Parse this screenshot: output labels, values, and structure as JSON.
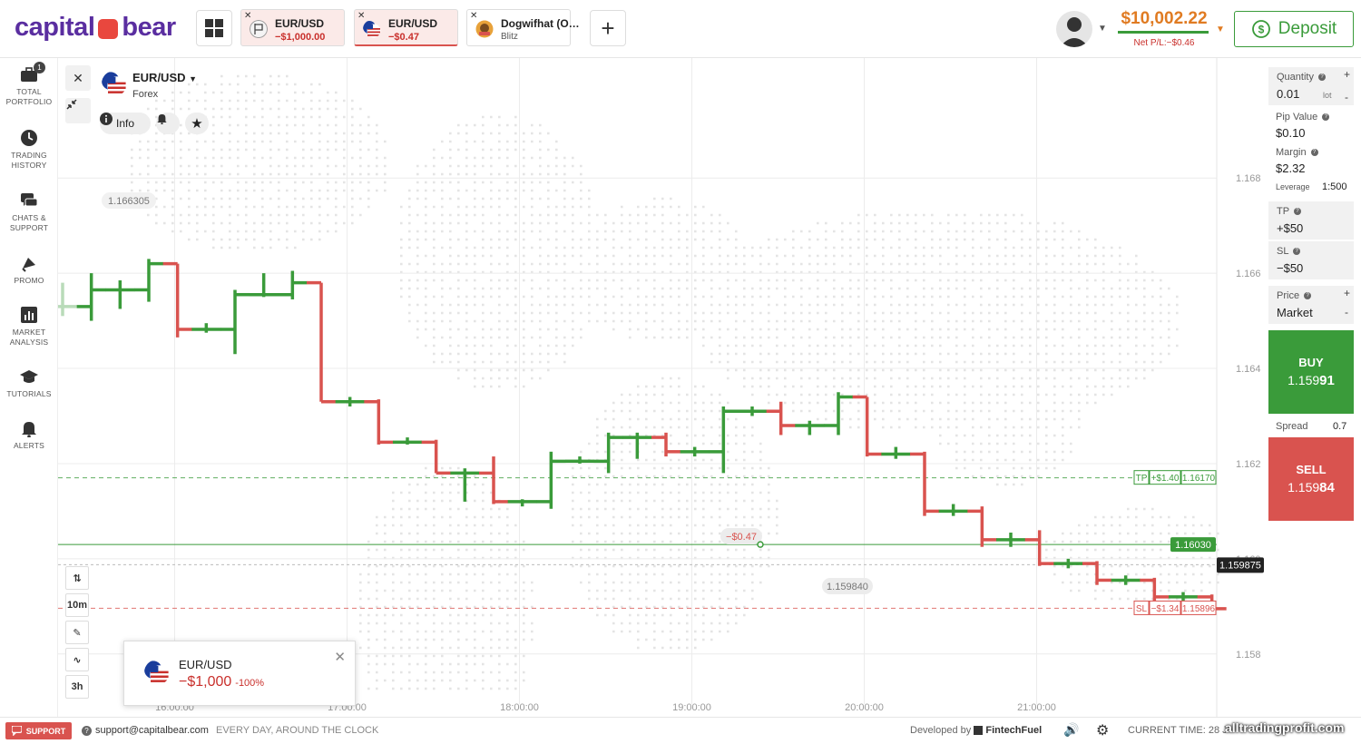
{
  "header": {
    "logo_left": "capital",
    "logo_right": "bear",
    "tabs": [
      {
        "name": "EUR/USD",
        "sub": "−$1,000.00"
      },
      {
        "name": "EUR/USD",
        "sub": "−$0.47"
      },
      {
        "name": "Dogwifhat (O…",
        "sub": "Blitz"
      }
    ],
    "add_tab": "+",
    "balance": "$10,002.22",
    "net_pl": "Net P/L:−$0.46",
    "deposit_label": "Deposit"
  },
  "sidebar": {
    "items": [
      {
        "label1": "TOTAL",
        "label2": "PORTFOLIO",
        "icon": "briefcase-icon",
        "badge": "1"
      },
      {
        "label1": "TRADING",
        "label2": "HISTORY",
        "icon": "clock-icon"
      },
      {
        "label1": "CHATS &",
        "label2": "SUPPORT",
        "icon": "chat-icon"
      },
      {
        "label1": "PROMO",
        "label2": "",
        "icon": "promo-icon"
      },
      {
        "label1": "MARKET",
        "label2": "ANALYSIS",
        "icon": "analysis-icon"
      },
      {
        "label1": "TUTORIALS",
        "label2": "",
        "icon": "graduation-icon"
      },
      {
        "label1": "ALERTS",
        "label2": "",
        "icon": "bell-icon"
      }
    ]
  },
  "chart": {
    "asset_name": "EUR/USD",
    "asset_type": "Forex",
    "info_label": "Info",
    "timeframe": "10m",
    "range": "3h",
    "high_label": "1.166305",
    "low_label": "1.159840",
    "pl_label": "−$0.47",
    "tp_tag": "TP",
    "tp_pl": "+$1.40",
    "tp_price": "1.16170",
    "sl_tag": "SL",
    "sl_pl": "−$1.34",
    "sl_price": "1.15896",
    "entry_price": "1.16030",
    "current_price": "1.159875",
    "popup": {
      "name": "EUR/USD",
      "value": "−$1,000",
      "pct": "-100%"
    }
  },
  "chart_data": {
    "type": "ohlc",
    "ylim": [
      1.1575,
      1.1693
    ],
    "y_ticks": [
      "1.168",
      "1.166",
      "1.164",
      "1.162",
      "1.160",
      "1.158"
    ],
    "x_ticks": [
      "16:00:00",
      "17:00:00",
      "18:00:00",
      "19:00:00",
      "20:00:00",
      "21:00:00"
    ],
    "bars": [
      {
        "t": "15:21",
        "open": 1.1653,
        "close": 1.1653,
        "high": 1.1658,
        "low": 1.1651
      },
      {
        "t": "15:31",
        "open": 1.1653,
        "close": 1.16565,
        "high": 1.166,
        "low": 1.165
      },
      {
        "t": "15:41",
        "open": 1.16565,
        "close": 1.16565,
        "high": 1.16585,
        "low": 1.16525
      },
      {
        "t": "15:51",
        "open": 1.16565,
        "close": 1.1662,
        "high": 1.1663,
        "low": 1.1654
      },
      {
        "t": "16:01",
        "open": 1.1662,
        "close": 1.16482,
        "high": 1.1662,
        "low": 1.16465
      },
      {
        "t": "16:11",
        "open": 1.16482,
        "close": 1.16482,
        "high": 1.16495,
        "low": 1.16475
      },
      {
        "t": "16:21",
        "open": 1.16482,
        "close": 1.16555,
        "high": 1.16565,
        "low": 1.1643
      },
      {
        "t": "16:31",
        "open": 1.16555,
        "close": 1.16555,
        "high": 1.166,
        "low": 1.1655
      },
      {
        "t": "16:41",
        "open": 1.16555,
        "close": 1.1658,
        "high": 1.16605,
        "low": 1.16545
      },
      {
        "t": "16:51",
        "open": 1.1658,
        "close": 1.1633,
        "high": 1.1658,
        "low": 1.1633
      },
      {
        "t": "17:01",
        "open": 1.1633,
        "close": 1.1633,
        "high": 1.1634,
        "low": 1.1632
      },
      {
        "t": "17:11",
        "open": 1.1633,
        "close": 1.16245,
        "high": 1.16335,
        "low": 1.1624
      },
      {
        "t": "17:21",
        "open": 1.16245,
        "close": 1.16245,
        "high": 1.16255,
        "low": 1.1624
      },
      {
        "t": "17:31",
        "open": 1.16245,
        "close": 1.1618,
        "high": 1.1625,
        "low": 1.1618
      },
      {
        "t": "17:41",
        "open": 1.1618,
        "close": 1.1618,
        "high": 1.1619,
        "low": 1.1612
      },
      {
        "t": "17:51",
        "open": 1.1618,
        "close": 1.1612,
        "high": 1.16215,
        "low": 1.16115
      },
      {
        "t": "18:01",
        "open": 1.1612,
        "close": 1.1612,
        "high": 1.16125,
        "low": 1.1611
      },
      {
        "t": "18:11",
        "open": 1.1612,
        "close": 1.16205,
        "high": 1.16225,
        "low": 1.16105
      },
      {
        "t": "18:21",
        "open": 1.16205,
        "close": 1.16205,
        "high": 1.16215,
        "low": 1.162
      },
      {
        "t": "18:31",
        "open": 1.16205,
        "close": 1.16255,
        "high": 1.16265,
        "low": 1.1618
      },
      {
        "t": "18:41",
        "open": 1.16255,
        "close": 1.16255,
        "high": 1.16265,
        "low": 1.1621
      },
      {
        "t": "18:51",
        "open": 1.16255,
        "close": 1.16225,
        "high": 1.16265,
        "low": 1.16215
      },
      {
        "t": "19:01",
        "open": 1.16225,
        "close": 1.16225,
        "high": 1.16235,
        "low": 1.16215
      },
      {
        "t": "19:11",
        "open": 1.16225,
        "close": 1.1631,
        "high": 1.1632,
        "low": 1.1618
      },
      {
        "t": "19:21",
        "open": 1.1631,
        "close": 1.1631,
        "high": 1.1632,
        "low": 1.163
      },
      {
        "t": "19:31",
        "open": 1.1631,
        "close": 1.1628,
        "high": 1.1633,
        "low": 1.1626
      },
      {
        "t": "19:41",
        "open": 1.1628,
        "close": 1.1628,
        "high": 1.1629,
        "low": 1.1626
      },
      {
        "t": "19:51",
        "open": 1.1628,
        "close": 1.1634,
        "high": 1.1635,
        "low": 1.1626
      },
      {
        "t": "20:01",
        "open": 1.1634,
        "close": 1.1622,
        "high": 1.1634,
        "low": 1.16215
      },
      {
        "t": "20:11",
        "open": 1.1622,
        "close": 1.1622,
        "high": 1.16235,
        "low": 1.1621
      },
      {
        "t": "20:21",
        "open": 1.1622,
        "close": 1.161,
        "high": 1.16225,
        "low": 1.1609
      },
      {
        "t": "20:31",
        "open": 1.161,
        "close": 1.161,
        "high": 1.16115,
        "low": 1.1609
      },
      {
        "t": "20:41",
        "open": 1.161,
        "close": 1.1604,
        "high": 1.1611,
        "low": 1.16025
      },
      {
        "t": "20:51",
        "open": 1.1604,
        "close": 1.1604,
        "high": 1.16055,
        "low": 1.16025
      },
      {
        "t": "21:01",
        "open": 1.1604,
        "close": 1.1599,
        "high": 1.1606,
        "low": 1.15985
      },
      {
        "t": "21:11",
        "open": 1.1599,
        "close": 1.1599,
        "high": 1.16,
        "low": 1.1598
      },
      {
        "t": "21:21",
        "open": 1.1599,
        "close": 1.15955,
        "high": 1.15995,
        "low": 1.15945
      },
      {
        "t": "21:31",
        "open": 1.15955,
        "close": 1.15955,
        "high": 1.15965,
        "low": 1.15945
      },
      {
        "t": "21:41",
        "open": 1.15955,
        "close": 1.1592,
        "high": 1.1596,
        "low": 1.15905
      },
      {
        "t": "21:51",
        "open": 1.1592,
        "close": 1.1592,
        "high": 1.1593,
        "low": 1.1591
      },
      {
        "t": "22:01",
        "open": 1.1592,
        "close": 1.15895,
        "high": 1.15925,
        "low": 1.15885
      }
    ]
  },
  "panel": {
    "quantity_label": "Quantity",
    "quantity": "0.01",
    "quantity_unit": "lot",
    "pip_label": "Pip Value",
    "pip": "$0.10",
    "margin_label": "Margin",
    "margin": "$2.32",
    "leverage_label": "Leverage",
    "leverage": "1:500",
    "tp_label": "TP",
    "tp": "+$50",
    "sl_label": "SL",
    "sl": "−$50",
    "price_label": "Price",
    "price": "Market",
    "buy_label": "BUY",
    "buy_price_main": "1.159",
    "buy_price_end": "91",
    "spread_label": "Spread",
    "spread": "0.7",
    "sell_label": "SELL",
    "sell_price_main": "1.159",
    "sell_price_end": "84"
  },
  "footer": {
    "support": "SUPPORT",
    "email": "support@capitalbear.com",
    "hours": "EVERY DAY, AROUND THE CLOCK",
    "dev_prefix": "Developed by",
    "dev_name": "FintechFuel",
    "time_label": "CURRENT TIME: 28 J",
    "watermark": "alltradingprofit.com"
  },
  "colors": {
    "green": "#3a9b3a",
    "red": "#d9534f",
    "orange": "#e07b22",
    "brand": "#5a2ea0"
  }
}
